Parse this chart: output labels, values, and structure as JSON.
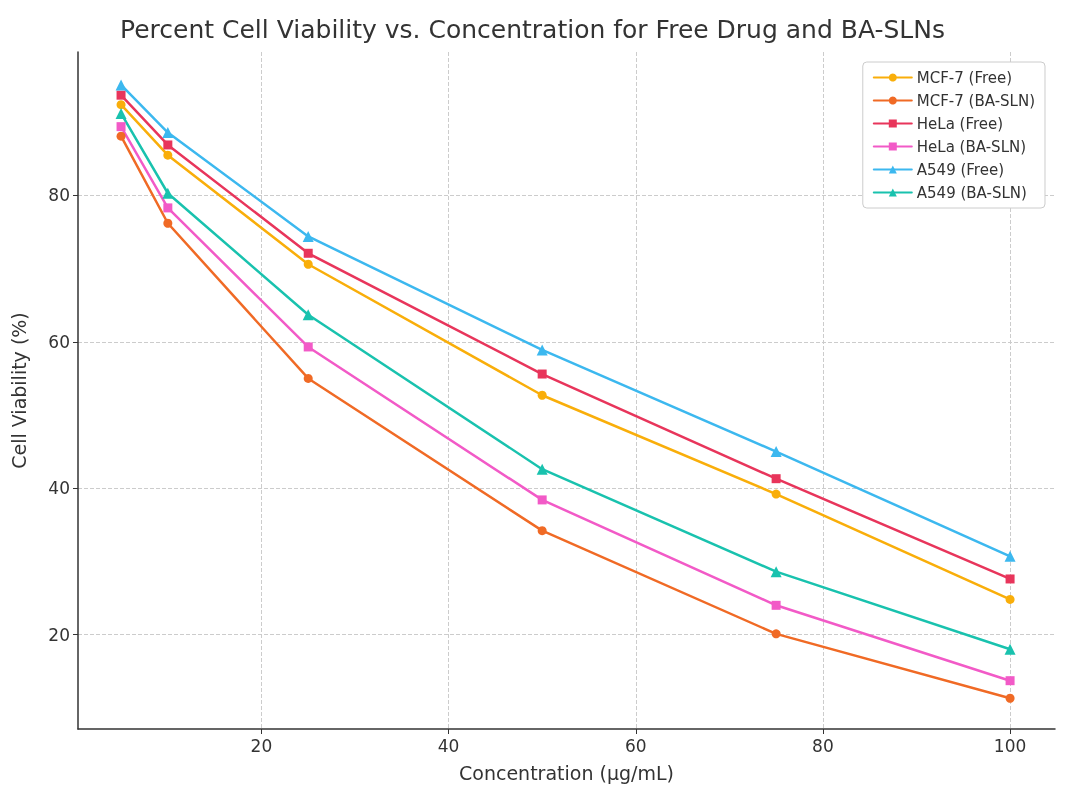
{
  "chart_data": {
    "type": "line",
    "title": "Percent Cell Viability vs. Concentration for Free Drug and BA-SLNs",
    "xlabel": "Concentration (µg/mL)",
    "ylabel": "Cell Viability (%)",
    "x": [
      5,
      10,
      25,
      50,
      75,
      100
    ],
    "series": [
      {
        "name": "MCF-7 (Free)",
        "color": "#f9ae0a",
        "marker": "circle",
        "values": [
          92.4,
          85.5,
          70.6,
          52.7,
          39.2,
          24.8
        ]
      },
      {
        "name": "MCF-7 (BA-SLN)",
        "color": "#f06a25",
        "marker": "circle",
        "values": [
          88.1,
          76.2,
          55.0,
          34.2,
          20.1,
          11.3
        ]
      },
      {
        "name": "HeLa (Free)",
        "color": "#e8355b",
        "marker": "square",
        "values": [
          93.7,
          86.9,
          72.1,
          55.6,
          41.3,
          27.6
        ]
      },
      {
        "name": "HeLa (BA-SLN)",
        "color": "#f25ac7",
        "marker": "square",
        "values": [
          89.4,
          78.3,
          59.3,
          38.4,
          24.0,
          13.7
        ]
      },
      {
        "name": "A549 (Free)",
        "color": "#3cb8ef",
        "marker": "triangle",
        "values": [
          95.1,
          88.6,
          74.4,
          58.9,
          45.0,
          30.7
        ]
      },
      {
        "name": "A549 (BA-SLN)",
        "color": "#19c2ae",
        "marker": "triangle",
        "values": [
          91.2,
          80.3,
          63.7,
          42.6,
          28.6,
          18.0
        ]
      }
    ],
    "xlim": [
      0.4,
      104.8
    ],
    "ylim": [
      7.1,
      99.6
    ],
    "xticks": [
      20,
      40,
      60,
      80,
      100
    ],
    "yticks": [
      20,
      40,
      60,
      80
    ],
    "grid": true,
    "legend": "top right",
    "line_style": "solid"
  }
}
